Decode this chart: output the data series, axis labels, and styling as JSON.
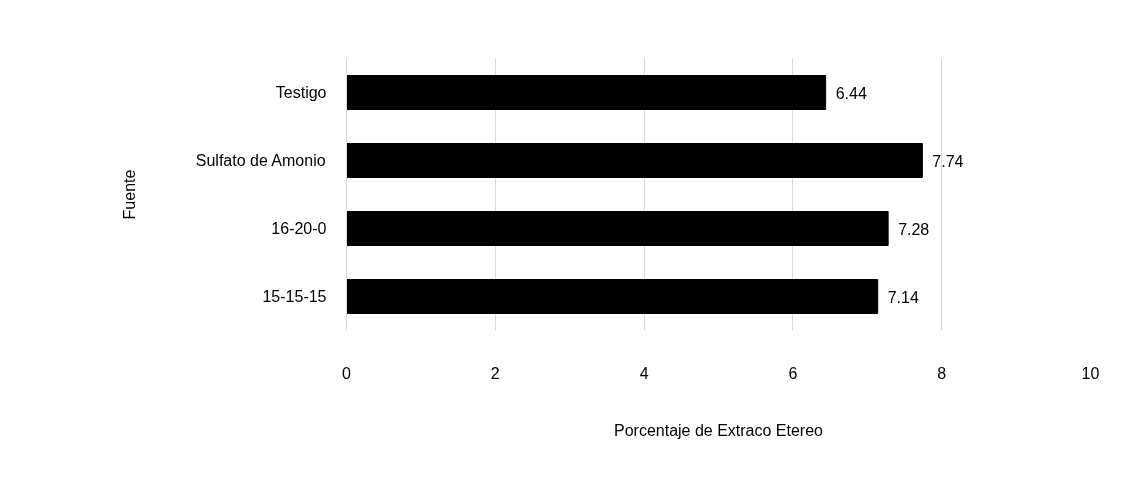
{
  "chart_data": {
    "type": "bar",
    "orientation": "horizontal",
    "xlabel": "Porcentaje de Extraco Etereo",
    "ylabel": "Fuente",
    "categories": [
      "Testigo",
      "Sulfato de Amonio",
      "16-20-0",
      "15-15-15"
    ],
    "values": [
      6.44,
      7.74,
      7.28,
      7.14
    ],
    "color": "#000000",
    "xlim": [
      0,
      10
    ],
    "xticks": [
      0,
      2,
      4,
      6,
      8,
      10
    ],
    "grid": "x",
    "data_labels": true
  }
}
